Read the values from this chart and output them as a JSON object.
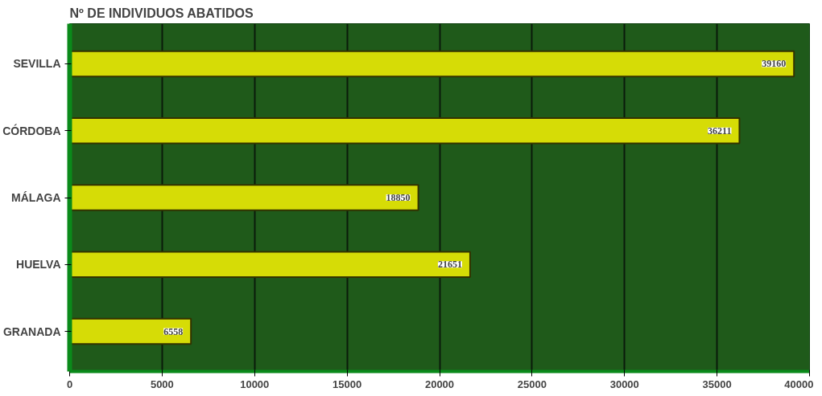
{
  "chart_data": {
    "type": "bar",
    "orientation": "horizontal",
    "title": "Nº DE INDIVIDUOS ABATIDOS",
    "categories": [
      "SEVILLA",
      "CÓRDOBA",
      "MÁLAGA",
      "HUELVA",
      "GRANADA"
    ],
    "values": [
      39160,
      36211,
      18850,
      21651,
      6558
    ],
    "color": "#d6dc06",
    "xlim": [
      0,
      40000
    ],
    "xticks": [
      0,
      5000,
      10000,
      15000,
      20000,
      25000,
      30000,
      35000,
      40000
    ],
    "grid": "x",
    "data_labels": true
  }
}
